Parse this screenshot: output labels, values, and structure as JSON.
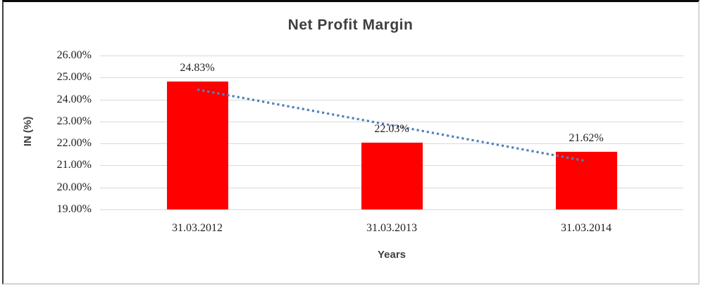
{
  "chart_data": {
    "type": "bar",
    "title": "Net Profit Margin",
    "xlabel": "Years",
    "ylabel": "IN (%)",
    "categories": [
      "31.03.2012",
      "31.03.2013",
      "31.03.2014"
    ],
    "values": [
      24.83,
      22.03,
      21.62
    ],
    "data_labels": [
      "24.83%",
      "22.03%",
      "21.62%"
    ],
    "ylim": [
      19,
      26
    ],
    "yticks": [
      "26.00%",
      "25.00%",
      "24.00%",
      "23.00%",
      "22.00%",
      "21.00%",
      "20.00%",
      "19.00%"
    ],
    "grid": "horizontal",
    "legend": "none",
    "bar_color": "#ff0000",
    "gridline_color": "#d9d9d9",
    "text_color": "#1f1f1f",
    "title_color": "#3f3f3f",
    "trendline": {
      "type": "linear",
      "style": "dotted",
      "color": "#4f81bd",
      "start_value": 24.45,
      "end_value": 21.2
    }
  }
}
